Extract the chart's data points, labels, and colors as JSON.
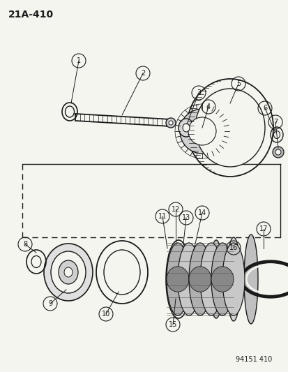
{
  "title": "21A-410",
  "figure_number": "94151 410",
  "bg": "#f5f5f0",
  "lc": "#1a1a1a",
  "figsize": [
    4.14,
    5.33
  ],
  "dpi": 100
}
